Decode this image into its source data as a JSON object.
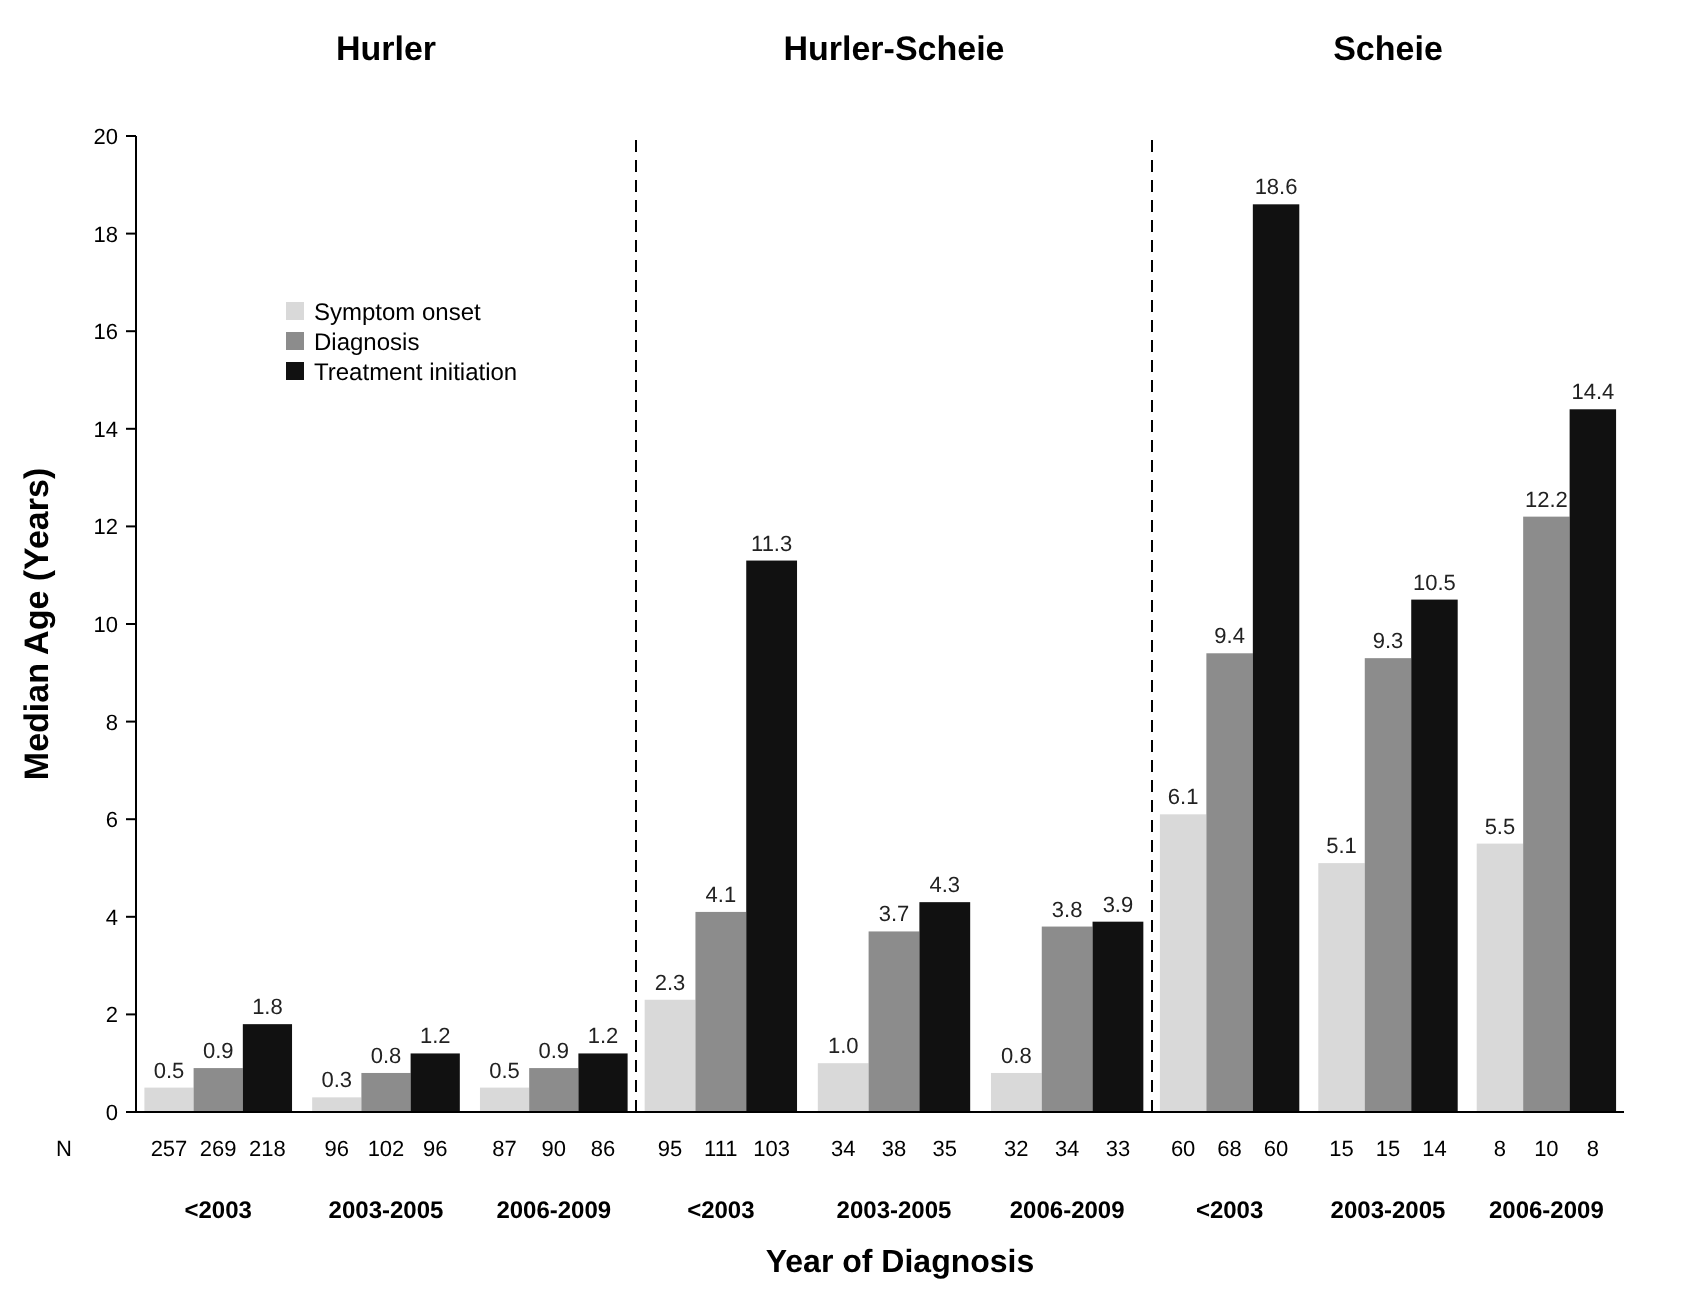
{
  "chart_data": [
    {
      "type": "bar",
      "title": "Hurler",
      "ylabel": "Median Age (Years)",
      "categories": [
        "<2003",
        "2003-2005",
        "2006-2009"
      ],
      "ylim": [
        0,
        20
      ],
      "yticks": [
        0,
        2,
        4,
        6,
        8,
        10,
        12,
        14,
        16,
        18,
        20
      ],
      "legend": "top left",
      "grid": false,
      "series": [
        {
          "name": "Symptom onset",
          "color": "#d9d9d9",
          "values": [
            0.5,
            0.3,
            0.5
          ],
          "value_labels": [
            "0.5",
            "0.3",
            "0.5"
          ]
        },
        {
          "name": "Diagnosis",
          "color": "#8c8c8c",
          "values": [
            0.9,
            0.8,
            0.9
          ],
          "value_labels": [
            "0.9",
            "0.8",
            "0.9"
          ]
        },
        {
          "name": "Treatment initiation",
          "color": "#111111",
          "values": [
            1.8,
            1.2,
            1.2
          ],
          "value_labels": [
            "1.8",
            "1.2",
            "1.2"
          ]
        }
      ],
      "annotations": [
        "N",
        "257",
        "269",
        "218",
        "96",
        "102",
        "96",
        "87",
        "90",
        "86"
      ]
    },
    {
      "type": "bar",
      "title": "Hurler-Scheie",
      "xlabel": "Year of Diagnosis",
      "categories": [
        "<2003",
        "2003-2005",
        "2006-2009"
      ],
      "ylim": [
        0,
        20
      ],
      "tick_labels": "x",
      "grid": false,
      "series": [
        {
          "color": "#d9d9d9",
          "values": [
            2.3,
            1.0,
            0.8
          ],
          "value_labels": [
            "2.3",
            "1.0",
            "0.8"
          ]
        },
        {
          "color": "#8c8c8c",
          "values": [
            4.1,
            3.7,
            3.8
          ],
          "value_labels": [
            "4.1",
            "3.7",
            "3.8"
          ]
        },
        {
          "color": "#111111",
          "values": [
            11.3,
            4.3,
            3.9
          ],
          "value_labels": [
            "11.3",
            "4.3",
            "3.9"
          ]
        }
      ],
      "annotations": [
        "95",
        "111",
        "103",
        "34",
        "38",
        "35",
        "32",
        "34",
        "33"
      ]
    },
    {
      "type": "bar",
      "title": "Scheie",
      "categories": [
        "<2003",
        "2003-2005",
        "2006-2009"
      ],
      "ylim": [
        0,
        20
      ],
      "tick_labels": "x",
      "grid": false,
      "series": [
        {
          "color": "#d9d9d9",
          "values": [
            6.1,
            5.1,
            5.5
          ],
          "value_labels": [
            "6.1",
            "5.1",
            "5.5"
          ]
        },
        {
          "color": "#8c8c8c",
          "values": [
            9.4,
            9.3,
            12.2
          ],
          "value_labels": [
            "9.4",
            "9.3",
            "12.2"
          ]
        },
        {
          "color": "#111111",
          "values": [
            18.6,
            10.5,
            14.4
          ],
          "value_labels": [
            "18.6",
            "10.5",
            "14.4"
          ]
        }
      ],
      "annotations": [
        "60",
        "68",
        "60",
        "15",
        "15",
        "14",
        "8",
        "10",
        "8"
      ]
    }
  ]
}
